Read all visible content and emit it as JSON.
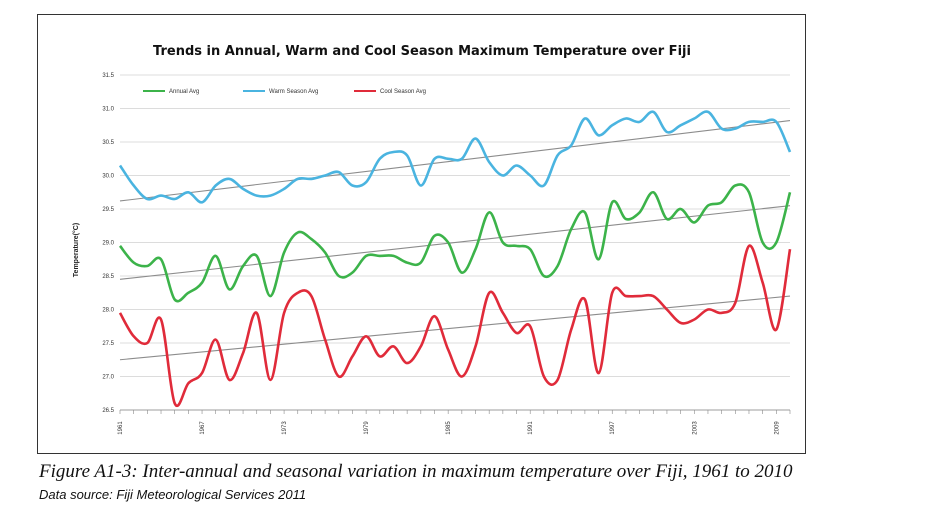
{
  "caption": "Figure A1-3: Inter-annual and seasonal variation in maximum temperature over Fiji, 1961 to 2010",
  "source": "Data source: Fiji Meteorological Services 2011",
  "colors": {
    "annual": "#3cb34a",
    "warm": "#4ab4e0",
    "cool": "#e02b3a",
    "trend": "#8c8c8c",
    "grid": "#d0d0d0"
  },
  "chart_data": {
    "type": "line",
    "title": "Trends in Annual, Warm and Cool Season Maximum Temperature over Fiji",
    "xlabel": "",
    "ylabel": "Temperature(°C)",
    "ylim": [
      26.5,
      31.5
    ],
    "yticks": [
      "26.5",
      "27.0",
      "27.5",
      "28.0",
      "28.5",
      "29.0",
      "29.5",
      "30.0",
      "30.5",
      "31.0",
      "31.5"
    ],
    "xticks": [
      "1961",
      "1967",
      "1973",
      "1979",
      "1985",
      "1991",
      "1997",
      "2003",
      "2009"
    ],
    "x": [
      1961,
      1962,
      1963,
      1964,
      1965,
      1966,
      1967,
      1968,
      1969,
      1970,
      1971,
      1972,
      1973,
      1974,
      1975,
      1976,
      1977,
      1978,
      1979,
      1980,
      1981,
      1982,
      1983,
      1984,
      1985,
      1986,
      1987,
      1988,
      1989,
      1990,
      1991,
      1992,
      1993,
      1994,
      1995,
      1996,
      1997,
      1998,
      1999,
      2000,
      2001,
      2002,
      2003,
      2004,
      2005,
      2006,
      2007,
      2008,
      2009,
      2010
    ],
    "grid": true,
    "legend_position": "top-left",
    "series": [
      {
        "name": "Annual Avg",
        "color_key": "annual",
        "values": [
          28.95,
          28.7,
          28.65,
          28.75,
          28.15,
          28.25,
          28.4,
          28.8,
          28.3,
          28.65,
          28.8,
          28.2,
          28.85,
          29.15,
          29.05,
          28.85,
          28.5,
          28.55,
          28.8,
          28.8,
          28.8,
          28.7,
          28.7,
          29.1,
          29.0,
          28.55,
          28.9,
          29.45,
          29.0,
          28.95,
          28.9,
          28.5,
          28.65,
          29.2,
          29.45,
          28.75,
          29.6,
          29.35,
          29.45,
          29.75,
          29.35,
          29.5,
          29.3,
          29.55,
          29.6,
          29.85,
          29.75,
          29.0,
          29.0,
          29.75
        ],
        "trend": [
          28.45,
          29.55
        ]
      },
      {
        "name": "Warm Season Avg",
        "color_key": "warm",
        "values": [
          30.15,
          29.85,
          29.65,
          29.7,
          29.65,
          29.75,
          29.6,
          29.85,
          29.95,
          29.8,
          29.7,
          29.7,
          29.8,
          29.95,
          29.95,
          30.0,
          30.05,
          29.85,
          29.9,
          30.25,
          30.35,
          30.3,
          29.85,
          30.25,
          30.25,
          30.25,
          30.55,
          30.2,
          30.0,
          30.15,
          30.0,
          29.85,
          30.3,
          30.45,
          30.85,
          30.6,
          30.75,
          30.85,
          30.8,
          30.95,
          30.65,
          30.75,
          30.85,
          30.95,
          30.7,
          30.7,
          30.8,
          30.8,
          30.8,
          30.35
        ],
        "trend": [
          29.62,
          30.82
        ]
      },
      {
        "name": "Cool Season Avg",
        "color_key": "cool",
        "values": [
          27.95,
          27.6,
          27.5,
          27.85,
          26.6,
          26.9,
          27.05,
          27.55,
          26.95,
          27.35,
          27.95,
          26.95,
          27.95,
          28.25,
          28.2,
          27.55,
          27.0,
          27.3,
          27.6,
          27.3,
          27.45,
          27.2,
          27.45,
          27.9,
          27.4,
          27.0,
          27.45,
          28.25,
          27.95,
          27.65,
          27.75,
          27.0,
          26.95,
          27.7,
          28.15,
          27.05,
          28.25,
          28.2,
          28.2,
          28.2,
          28.0,
          27.8,
          27.85,
          28.0,
          27.95,
          28.1,
          28.95,
          28.4,
          27.7,
          28.9
        ],
        "trend": [
          27.25,
          28.2
        ]
      }
    ]
  }
}
